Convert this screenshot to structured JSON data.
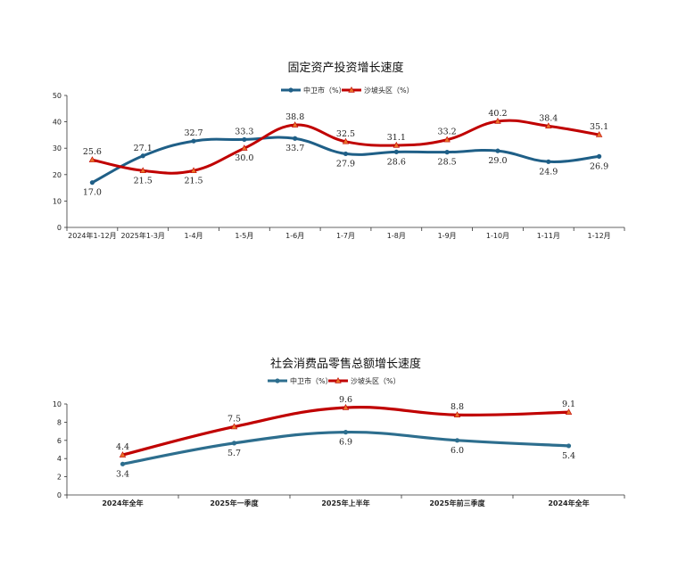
{
  "chart_data": [
    {
      "type": "line",
      "title": "固定资产投资增长速度",
      "categories": [
        "2024年1-12月",
        "2025年1-3月",
        "1-4月",
        "1-5月",
        "1-6月",
        "1-7月",
        "1-8月",
        "1-9月",
        "1-10月",
        "1-11月",
        "1-12月"
      ],
      "ylim": [
        0,
        50
      ],
      "yticks": [
        0,
        10,
        20,
        30,
        40,
        50
      ],
      "grid": false,
      "legend": "top-center",
      "series": [
        {
          "name": "中卫市（%）",
          "color": "#1f5f87",
          "marker": "circle",
          "values": [
            17.0,
            27.1,
            32.7,
            33.3,
            33.7,
            27.9,
            28.6,
            28.5,
            29.0,
            24.9,
            26.9
          ],
          "labels": [
            "17.0",
            "27.1",
            "32.7",
            "33.3",
            "33.7",
            "27.9",
            "28.6",
            "28.5",
            "29.0",
            "24.9",
            "26.9"
          ]
        },
        {
          "name": "沙坡头区（%）",
          "color": "#c00000",
          "marker": "triangle",
          "values": [
            25.6,
            21.5,
            21.5,
            30.0,
            38.8,
            32.5,
            31.1,
            33.2,
            40.2,
            38.4,
            35.1
          ],
          "labels": [
            "25.6",
            "21.5",
            "21.5",
            "30.0",
            "38.8",
            "32.5",
            "31.1",
            "33.2",
            "40.2",
            "38.4",
            "35.1"
          ]
        }
      ]
    },
    {
      "type": "line",
      "title": "社会消费品零售总额增长速度",
      "categories": [
        "2024年全年",
        "2025年一季度",
        "2025年上半年",
        "2025年前三季度",
        "2024年全年"
      ],
      "ylim": [
        0,
        10
      ],
      "yticks": [
        0,
        2,
        4,
        6,
        8,
        10
      ],
      "grid": false,
      "legend": "top-center",
      "series": [
        {
          "name": "中卫市（%）",
          "color": "#2d6e8e",
          "marker": "circle",
          "values": [
            3.4,
            5.7,
            6.9,
            6.0,
            5.4
          ],
          "labels": [
            "3.4",
            "5.7",
            "6.9",
            "6.0",
            "5.4"
          ]
        },
        {
          "name": "沙坡头区（%）",
          "color": "#c00000",
          "marker": "triangle",
          "values": [
            4.4,
            7.5,
            9.6,
            8.8,
            9.1
          ],
          "labels": [
            "4.4",
            "7.5",
            "9.6",
            "8.8",
            "9.1"
          ]
        }
      ]
    }
  ]
}
